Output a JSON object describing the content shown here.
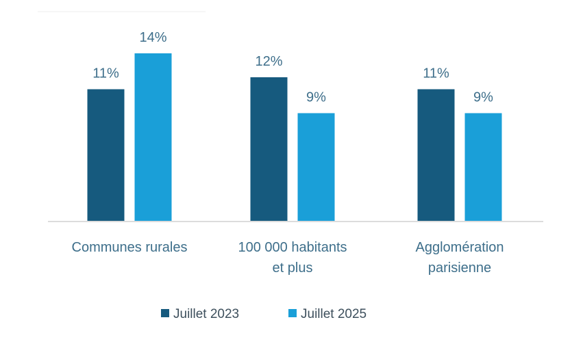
{
  "chart_data": {
    "type": "bar",
    "title": "",
    "xlabel": "",
    "ylabel": "",
    "ylim": [
      0,
      14
    ],
    "grid": false,
    "legend_position": "bottom",
    "categories": [
      [
        "Communes rurales"
      ],
      [
        "100 000 habitants",
        "et plus"
      ],
      [
        "Agglomération",
        "parisienne"
      ]
    ],
    "series": [
      {
        "name": "Juillet 2023",
        "color": "#165a7e",
        "values": [
          11,
          12,
          11
        ],
        "labels": [
          "11%",
          "12%",
          "11%"
        ]
      },
      {
        "name": "Juillet 2025",
        "color": "#1a9fd8",
        "values": [
          14,
          9,
          9
        ],
        "labels": [
          "14%",
          "9%",
          "9%"
        ]
      }
    ]
  }
}
